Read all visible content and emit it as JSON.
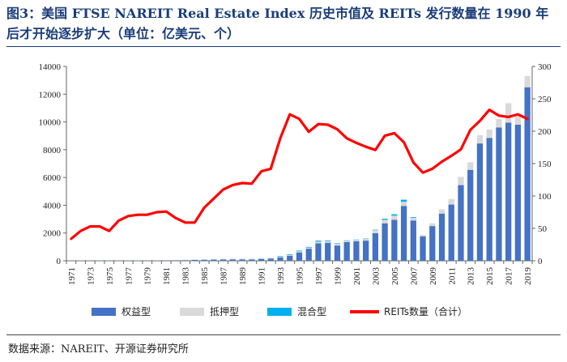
{
  "title": "图3：美国 FTSE NAREIT Real Estate Index 历史市值及 REITs 发行数量在 1990 年后才开始逐步扩大（单位：亿美元、个）",
  "source": "数据来源：NAREIT、开源证券研究所",
  "chart_data": {
    "type": "bar",
    "stacked": true,
    "categories": [
      "1971",
      "1972",
      "1973",
      "1974",
      "1975",
      "1976",
      "1977",
      "1978",
      "1979",
      "1980",
      "1981",
      "1982",
      "1983",
      "1984",
      "1985",
      "1986",
      "1987",
      "1988",
      "1989",
      "1990",
      "1991",
      "1992",
      "1993",
      "1994",
      "1995",
      "1996",
      "1997",
      "1998",
      "1999",
      "2000",
      "2001",
      "2002",
      "2003",
      "2004",
      "2005",
      "2006",
      "2007",
      "2008",
      "2009",
      "2010",
      "2011",
      "2012",
      "2013",
      "2014",
      "2015",
      "2016",
      "2017",
      "2018",
      "2019"
    ],
    "x_tick_labels": [
      "1971",
      "1973",
      "1975",
      "1977",
      "1979",
      "1981",
      "1983",
      "1985",
      "1987",
      "1989",
      "1991",
      "1993",
      "1995",
      "1997",
      "1999",
      "2001",
      "2003",
      "2005",
      "2007",
      "2009",
      "2011",
      "2013",
      "2015",
      "2017",
      "2019"
    ],
    "y_left": {
      "ylim": [
        0,
        14000
      ],
      "ticks": [
        "0",
        "2000",
        "4000",
        "6000",
        "8000",
        "10000",
        "12000",
        "14000"
      ]
    },
    "y_right": {
      "ylim": [
        0,
        300
      ],
      "ticks": [
        "0",
        "50",
        "100",
        "150",
        "200",
        "250",
        "300"
      ]
    },
    "legend_position": "bottom",
    "grid": false,
    "series": [
      {
        "name": "权益型",
        "color": "#4472c4",
        "axis": "left",
        "kind": "bar",
        "values": [
          3,
          5,
          5,
          4,
          5,
          7,
          10,
          10,
          12,
          20,
          25,
          30,
          45,
          60,
          70,
          80,
          90,
          100,
          100,
          90,
          130,
          150,
          250,
          350,
          600,
          870,
          1260,
          1300,
          1100,
          1350,
          1400,
          1450,
          1990,
          2700,
          2950,
          3950,
          2900,
          1750,
          2500,
          3400,
          4050,
          5450,
          6550,
          8450,
          8850,
          9600,
          9950,
          9800,
          12500
        ]
      },
      {
        "name": "抵押型",
        "color": "#d9d9d9",
        "axis": "left",
        "kind": "bar",
        "values": [
          5,
          8,
          7,
          6,
          6,
          7,
          8,
          8,
          8,
          8,
          10,
          12,
          15,
          20,
          20,
          25,
          25,
          25,
          30,
          30,
          30,
          40,
          50,
          60,
          80,
          80,
          120,
          120,
          120,
          90,
          100,
          120,
          220,
          250,
          300,
          300,
          200,
          120,
          200,
          300,
          400,
          600,
          550,
          600,
          600,
          600,
          1400,
          700,
          800
        ]
      },
      {
        "name": "混合型",
        "color": "#00b0f0",
        "axis": "left",
        "kind": "bar",
        "values": [
          2,
          2,
          2,
          2,
          2,
          2,
          3,
          3,
          3,
          3,
          3,
          4,
          5,
          5,
          8,
          10,
          10,
          10,
          10,
          10,
          12,
          15,
          40,
          50,
          50,
          50,
          70,
          50,
          40,
          30,
          30,
          30,
          30,
          80,
          100,
          150,
          50,
          0,
          0,
          0,
          0,
          0,
          0,
          0,
          0,
          0,
          0,
          0,
          0
        ]
      },
      {
        "name": "REITs数量（合计）",
        "color": "#ff0000",
        "axis": "right",
        "kind": "line",
        "values": [
          34,
          46,
          53,
          53,
          46,
          62,
          69,
          71,
          71,
          75,
          76,
          66,
          59,
          59,
          82,
          96,
          110,
          117,
          120,
          119,
          138,
          142,
          189,
          226,
          219,
          199,
          211,
          210,
          203,
          189,
          182,
          176,
          171,
          193,
          197,
          183,
          152,
          136,
          142,
          153,
          162,
          172,
          202,
          216,
          233,
          224,
          222,
          226,
          219
        ]
      }
    ]
  }
}
